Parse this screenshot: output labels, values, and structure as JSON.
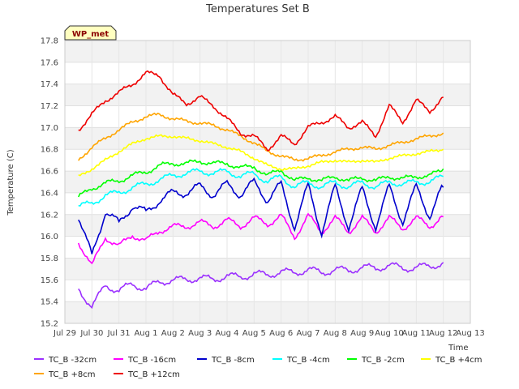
{
  "chart_data": {
    "type": "line",
    "title": "Temperatures Set B",
    "xlabel": "Time",
    "ylabel": "Temperature (C)",
    "badge": "WP_met",
    "x_ticks": [
      "Jul 29",
      "Jul 30",
      "Jul 31",
      "Aug 1",
      "Aug 2",
      "Aug 3",
      "Aug 4",
      "Aug 5",
      "Aug 6",
      "Aug 7",
      "Aug 8",
      "Aug 9",
      "Aug 10",
      "Aug 11",
      "Aug 12",
      "Aug 13"
    ],
    "y_ticks": [
      "15.2",
      "15.4",
      "15.6",
      "15.8",
      "16.0",
      "16.2",
      "16.4",
      "16.6",
      "16.8",
      "17.0",
      "17.2",
      "17.4",
      "17.6",
      "17.8"
    ],
    "xlim": [
      0,
      15
    ],
    "ylim": [
      15.2,
      17.8
    ],
    "grid": true,
    "legend_position": "bottom",
    "series": [
      {
        "name": "TC_B -32cm",
        "color": "#9b30ff",
        "x": [
          0.5,
          1.0,
          1.5,
          2.0,
          2.5,
          3.0,
          3.5,
          4.0,
          4.5,
          5.0,
          5.5,
          6.0,
          6.5,
          7.0,
          7.5,
          8.0,
          8.5,
          9.0,
          9.5,
          10.0,
          10.5,
          11.0,
          11.5,
          12.0,
          12.5,
          13.0,
          13.5,
          14.0
        ],
        "y": [
          15.52,
          15.35,
          15.55,
          15.5,
          15.56,
          15.52,
          15.58,
          15.6,
          15.6,
          15.62,
          15.6,
          15.64,
          15.62,
          15.66,
          15.64,
          15.68,
          15.66,
          15.7,
          15.66,
          15.7,
          15.68,
          15.72,
          15.7,
          15.74,
          15.7,
          15.72,
          15.72,
          15.76
        ]
      },
      {
        "name": "TC_B -16cm",
        "color": "#ff00ff",
        "x": [
          0.5,
          1.0,
          1.5,
          2.0,
          2.5,
          3.0,
          3.5,
          4.0,
          4.5,
          5.0,
          5.5,
          6.0,
          6.5,
          7.0,
          7.5,
          8.0,
          8.5,
          9.0,
          9.5,
          10.0,
          10.5,
          11.0,
          11.5,
          12.0,
          12.5,
          13.0,
          13.5,
          14.0
        ],
        "y": [
          15.96,
          15.72,
          16.0,
          15.9,
          16.02,
          15.95,
          16.06,
          16.08,
          16.1,
          16.12,
          16.1,
          16.14,
          16.1,
          16.16,
          16.12,
          16.18,
          16.0,
          16.18,
          16.05,
          16.16,
          16.05,
          16.16,
          16.05,
          16.16,
          16.08,
          16.16,
          16.1,
          16.18
        ]
      },
      {
        "name": "TC_B -8cm",
        "color": "#0000cd",
        "x": [
          0.5,
          1.0,
          1.5,
          2.0,
          2.5,
          3.0,
          3.5,
          4.0,
          4.5,
          5.0,
          5.5,
          6.0,
          6.5,
          7.0,
          7.5,
          8.0,
          8.5,
          9.0,
          9.5,
          10.0,
          10.5,
          11.0,
          11.5,
          12.0,
          12.5,
          13.0,
          13.5,
          14.0
        ],
        "y": [
          16.2,
          15.8,
          16.25,
          16.1,
          16.3,
          16.2,
          16.35,
          16.38,
          16.42,
          16.44,
          16.4,
          16.46,
          16.4,
          16.48,
          16.35,
          16.46,
          16.1,
          16.45,
          16.05,
          16.44,
          16.1,
          16.42,
          16.1,
          16.44,
          16.15,
          16.44,
          16.2,
          16.45
        ]
      },
      {
        "name": "TC_B -4cm",
        "color": "#00ffff",
        "x": [
          0.5,
          1.0,
          1.5,
          2.0,
          2.5,
          3.0,
          3.5,
          4.0,
          4.5,
          5.0,
          5.5,
          6.0,
          6.5,
          7.0,
          7.5,
          8.0,
          8.5,
          9.0,
          9.5,
          10.0,
          10.5,
          11.0,
          11.5,
          12.0,
          12.5,
          13.0,
          13.5,
          14.0
        ],
        "y": [
          16.28,
          16.3,
          16.38,
          16.4,
          16.45,
          16.48,
          16.52,
          16.56,
          16.58,
          16.6,
          16.58,
          16.6,
          16.55,
          16.58,
          16.5,
          16.55,
          16.45,
          16.5,
          16.45,
          16.5,
          16.45,
          16.5,
          16.45,
          16.5,
          16.48,
          16.5,
          16.5,
          16.55
        ]
      },
      {
        "name": "TC_B -2cm",
        "color": "#00ff00",
        "x": [
          0.5,
          1.0,
          1.5,
          2.0,
          2.5,
          3.0,
          3.5,
          4.0,
          4.5,
          5.0,
          5.5,
          6.0,
          6.5,
          7.0,
          7.5,
          8.0,
          8.5,
          9.0,
          9.5,
          10.0,
          10.5,
          11.0,
          11.5,
          12.0,
          12.5,
          13.0,
          13.5,
          14.0
        ],
        "y": [
          16.35,
          16.45,
          16.48,
          16.52,
          16.55,
          16.6,
          16.64,
          16.68,
          16.66,
          16.7,
          16.66,
          16.68,
          16.62,
          16.65,
          16.55,
          16.62,
          16.5,
          16.55,
          16.5,
          16.56,
          16.5,
          16.55,
          16.5,
          16.56,
          16.52,
          16.56,
          16.55,
          16.62
        ]
      },
      {
        "name": "TC_B +4cm",
        "color": "#ffff00",
        "x": [
          0.5,
          1.0,
          1.5,
          2.0,
          2.5,
          3.0,
          3.5,
          4.0,
          4.5,
          5.0,
          5.5,
          6.0,
          6.5,
          7.0,
          7.5,
          8.0,
          8.5,
          9.0,
          9.5,
          10.0,
          10.5,
          11.0,
          11.5,
          12.0,
          12.5,
          13.0,
          13.5,
          14.0
        ],
        "y": [
          16.55,
          16.62,
          16.7,
          16.78,
          16.85,
          16.9,
          16.92,
          16.92,
          16.9,
          16.88,
          16.85,
          16.82,
          16.78,
          16.72,
          16.65,
          16.62,
          16.62,
          16.65,
          16.68,
          16.7,
          16.68,
          16.7,
          16.68,
          16.72,
          16.74,
          16.76,
          16.78,
          16.8
        ]
      },
      {
        "name": "TC_B +8cm",
        "color": "#ffa500",
        "x": [
          0.5,
          1.0,
          1.5,
          2.0,
          2.5,
          3.0,
          3.5,
          4.0,
          4.5,
          5.0,
          5.5,
          6.0,
          6.5,
          7.0,
          7.5,
          8.0,
          8.5,
          9.0,
          9.5,
          10.0,
          10.5,
          11.0,
          11.5,
          12.0,
          12.5,
          13.0,
          13.5,
          14.0
        ],
        "y": [
          16.7,
          16.82,
          16.9,
          16.98,
          17.05,
          17.1,
          17.12,
          17.08,
          17.06,
          17.04,
          17.02,
          16.98,
          16.92,
          16.86,
          16.78,
          16.74,
          16.7,
          16.72,
          16.74,
          16.78,
          16.8,
          16.82,
          16.8,
          16.84,
          16.86,
          16.9,
          16.92,
          16.95
        ]
      },
      {
        "name": "TC_B +12cm",
        "color": "#ee0000",
        "x": [
          0.5,
          1.0,
          1.5,
          2.0,
          2.5,
          3.0,
          3.5,
          4.0,
          4.5,
          5.0,
          5.5,
          6.0,
          6.5,
          7.0,
          7.5,
          8.0,
          8.5,
          9.0,
          9.5,
          10.0,
          10.5,
          11.0,
          11.5,
          12.0,
          12.5,
          13.0,
          13.5,
          14.0
        ],
        "y": [
          16.98,
          17.12,
          17.25,
          17.32,
          17.4,
          17.5,
          17.48,
          17.3,
          17.22,
          17.28,
          17.2,
          17.08,
          16.95,
          16.92,
          16.8,
          16.92,
          16.85,
          17.0,
          17.05,
          17.1,
          17.0,
          17.05,
          16.92,
          17.2,
          17.05,
          17.25,
          17.15,
          17.28
        ]
      }
    ]
  }
}
